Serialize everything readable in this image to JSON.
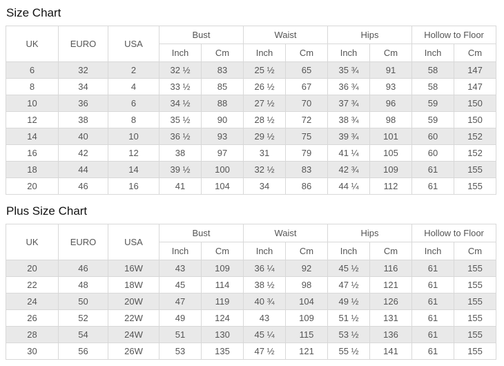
{
  "size_chart": {
    "title": "Size Chart",
    "header": {
      "uk": "UK",
      "euro": "EURO",
      "usa": "USA",
      "groups": [
        "Bust",
        "Waist",
        "Hips",
        "Hollow to Floor"
      ],
      "sub": [
        "Inch",
        "Cm"
      ]
    },
    "rows": [
      [
        "6",
        "32",
        "2",
        "32 ½",
        "83",
        "25 ½",
        "65",
        "35 ¾",
        "91",
        "58",
        "147"
      ],
      [
        "8",
        "34",
        "4",
        "33 ½",
        "85",
        "26 ½",
        "67",
        "36 ¾",
        "93",
        "58",
        "147"
      ],
      [
        "10",
        "36",
        "6",
        "34 ½",
        "88",
        "27 ½",
        "70",
        "37 ¾",
        "96",
        "59",
        "150"
      ],
      [
        "12",
        "38",
        "8",
        "35 ½",
        "90",
        "28 ½",
        "72",
        "38 ¾",
        "98",
        "59",
        "150"
      ],
      [
        "14",
        "40",
        "10",
        "36 ½",
        "93",
        "29 ½",
        "75",
        "39 ¾",
        "101",
        "60",
        "152"
      ],
      [
        "16",
        "42",
        "12",
        "38",
        "97",
        "31",
        "79",
        "41 ¼",
        "105",
        "60",
        "152"
      ],
      [
        "18",
        "44",
        "14",
        "39 ½",
        "100",
        "32 ½",
        "83",
        "42 ¾",
        "109",
        "61",
        "155"
      ],
      [
        "20",
        "46",
        "16",
        "41",
        "104",
        "34",
        "86",
        "44 ¼",
        "112",
        "61",
        "155"
      ]
    ]
  },
  "plus_size_chart": {
    "title": "Plus Size Chart",
    "header": {
      "uk": "UK",
      "euro": "EURO",
      "usa": "USA",
      "groups": [
        "Bust",
        "Waist",
        "Hips",
        "Hollow to Floor"
      ],
      "sub": [
        "Inch",
        "Cm"
      ]
    },
    "rows": [
      [
        "20",
        "46",
        "16W",
        "43",
        "109",
        "36 ¼",
        "92",
        "45 ½",
        "116",
        "61",
        "155"
      ],
      [
        "22",
        "48",
        "18W",
        "45",
        "114",
        "38 ½",
        "98",
        "47 ½",
        "121",
        "61",
        "155"
      ],
      [
        "24",
        "50",
        "20W",
        "47",
        "119",
        "40 ¾",
        "104",
        "49 ½",
        "126",
        "61",
        "155"
      ],
      [
        "26",
        "52",
        "22W",
        "49",
        "124",
        "43",
        "109",
        "51 ½",
        "131",
        "61",
        "155"
      ],
      [
        "28",
        "54",
        "24W",
        "51",
        "130",
        "45 ¼",
        "115",
        "53 ½",
        "136",
        "61",
        "155"
      ],
      [
        "30",
        "56",
        "26W",
        "53",
        "135",
        "47 ½",
        "121",
        "55 ½",
        "141",
        "61",
        "155"
      ]
    ]
  },
  "colors": {
    "zebra_row": "#e9e9e9",
    "border": "#d8d8d8",
    "text": "#555555",
    "title_text": "#111111"
  }
}
